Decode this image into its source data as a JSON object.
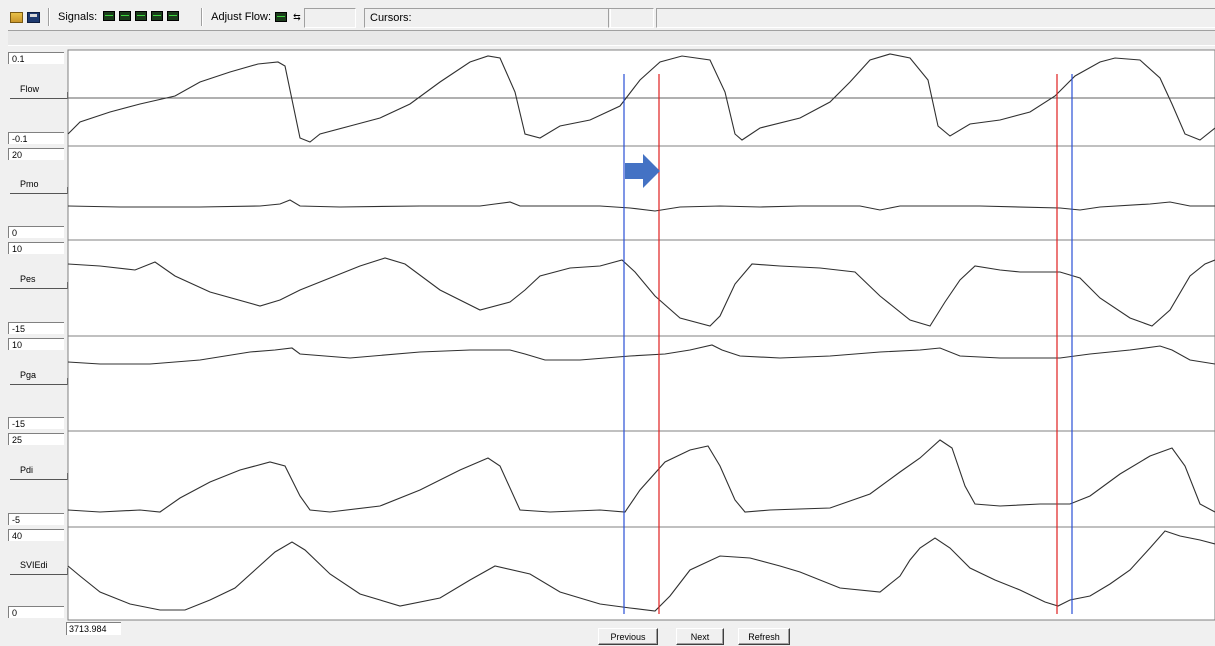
{
  "toolbar": {
    "signals_label": "Signals:",
    "signal_count": 5,
    "adjust_flow_label": "Adjust Flow:",
    "cursors_label": "Cursors:"
  },
  "channels": [
    {
      "name": "Flow",
      "max": "0.1",
      "min": "-0.1"
    },
    {
      "name": "Pmo",
      "max": "20",
      "min": "0"
    },
    {
      "name": "Pes",
      "max": "10",
      "min": "-15"
    },
    {
      "name": "Pga",
      "max": "10",
      "min": "-15"
    },
    {
      "name": "Pdi",
      "max": "25",
      "min": "-5"
    },
    {
      "name": "SVIEdi",
      "max": "40",
      "min": "0"
    }
  ],
  "time_readout": "3713.984",
  "buttons": {
    "previous": "Previous",
    "next": "Next",
    "refresh": "Refresh"
  },
  "cursor_colors": {
    "blue": "#2a4fd6",
    "red": "#e02020"
  },
  "arrow_color": "#4472c4"
}
